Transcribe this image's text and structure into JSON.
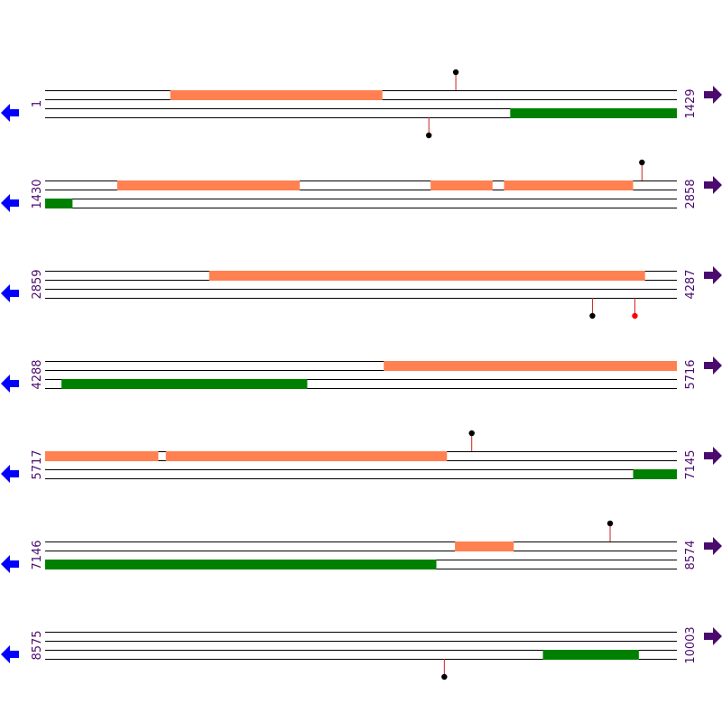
{
  "map": {
    "colors": {
      "forward_feature": "#ff8050",
      "reverse_feature": "#008000",
      "strand_line": "#000000",
      "marker_stem": "#cc2222",
      "marker_dot": "#000000",
      "marker_dot_highlight": "#ff0000",
      "left_arrow": "#0000ff",
      "right_arrow": "#4b0a6e",
      "coordinate_text": "#4b0a6e"
    },
    "icons": {
      "left": "arrow-left-icon",
      "right": "arrow-right-icon"
    },
    "rows": [
      {
        "start": 1,
        "end": 1429,
        "start_label": "1",
        "end_label": "1429",
        "forward_features": [
          [
            284,
            763
          ]
        ],
        "reverse_features": [
          [
            1053,
            1429
          ]
        ],
        "markers": [
          {
            "position": 930,
            "strand": "top",
            "highlight": false
          },
          {
            "position": 869,
            "strand": "bottom",
            "highlight": false
          }
        ]
      },
      {
        "start": 1430,
        "end": 2858,
        "start_label": "1430",
        "end_label": "2858",
        "forward_features": [
          [
            1593,
            2005
          ],
          [
            2302,
            2441
          ],
          [
            2468,
            2759
          ]
        ],
        "reverse_features": [
          [
            1430,
            1491
          ]
        ],
        "markers": [
          {
            "position": 2780,
            "strand": "top",
            "highlight": false
          }
        ]
      },
      {
        "start": 2859,
        "end": 4287,
        "start_label": "2859",
        "end_label": "4287",
        "forward_features": [
          [
            3230,
            4215
          ]
        ],
        "reverse_features": [],
        "markers": [
          {
            "position": 4097,
            "strand": "bottom",
            "highlight": false
          },
          {
            "position": 4193,
            "strand": "bottom",
            "highlight": true
          }
        ]
      },
      {
        "start": 4288,
        "end": 5716,
        "start_label": "4288",
        "end_label": "5716",
        "forward_features": [
          [
            5054,
            5716
          ]
        ],
        "reverse_features": [
          [
            4325,
            4880
          ]
        ],
        "markers": []
      },
      {
        "start": 5717,
        "end": 7145,
        "start_label": "5717",
        "end_label": "7145",
        "forward_features": [
          [
            5717,
            5972
          ],
          [
            5990,
            6625
          ]
        ],
        "reverse_features": [
          [
            7047,
            7145
          ]
        ],
        "markers": [
          {
            "position": 6682,
            "strand": "top",
            "highlight": false
          }
        ]
      },
      {
        "start": 7146,
        "end": 8574,
        "start_label": "7146",
        "end_label": "8574",
        "forward_features": [
          [
            8073,
            8205
          ]
        ],
        "reverse_features": [
          [
            7146,
            8030
          ]
        ],
        "markers": [
          {
            "position": 8424,
            "strand": "top",
            "highlight": false
          }
        ]
      },
      {
        "start": 8575,
        "end": 10003,
        "start_label": "8575",
        "end_label": "10003",
        "forward_features": [],
        "reverse_features": [
          [
            9701,
            9917
          ]
        ],
        "markers": [
          {
            "position": 9478,
            "strand": "bottom",
            "highlight": false
          }
        ]
      }
    ]
  }
}
